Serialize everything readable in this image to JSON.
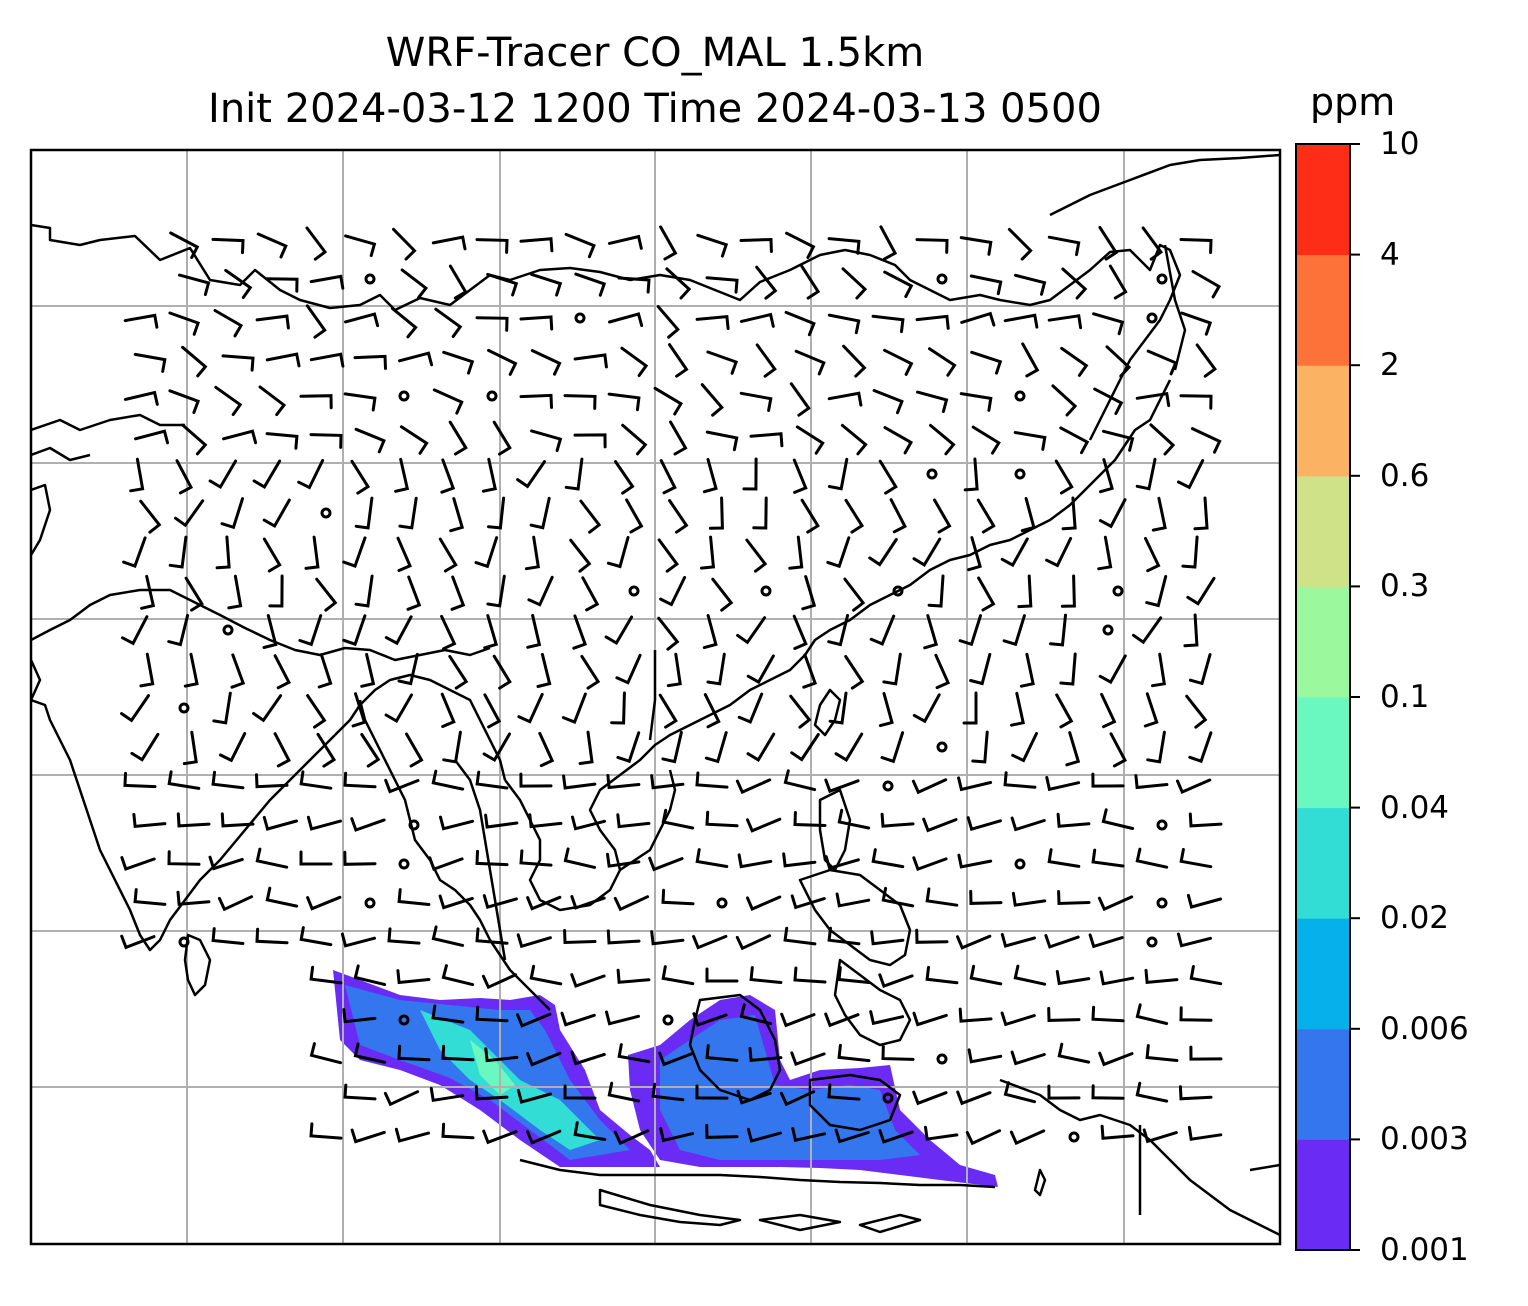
{
  "title": {
    "line1": "WRF-Tracer CO_MAL 1.5km",
    "line2": "Init 2024-03-12 1200 Time 2024-03-13 0500"
  },
  "colorbar": {
    "unit": "ppm",
    "levels": [
      "0.001",
      "0.003",
      "0.006",
      "0.02",
      "0.04",
      "0.1",
      "0.3",
      "0.6",
      "2",
      "4",
      "10"
    ],
    "colors": [
      "#6a2bf5",
      "#3376ee",
      "#06b0ea",
      "#32ddd6",
      "#6bf8c0",
      "#9bf89c",
      "#cfe288",
      "#fbb262",
      "#fd7239",
      "#fe2d17"
    ]
  },
  "colors": {
    "frame": "#000000",
    "grid": "#b0b0b0",
    "coast": "#000000",
    "barb": "#000000"
  },
  "map_layers": [
    "coastlines",
    "gridlines",
    "wind-barbs",
    "tracer-shading"
  ]
}
